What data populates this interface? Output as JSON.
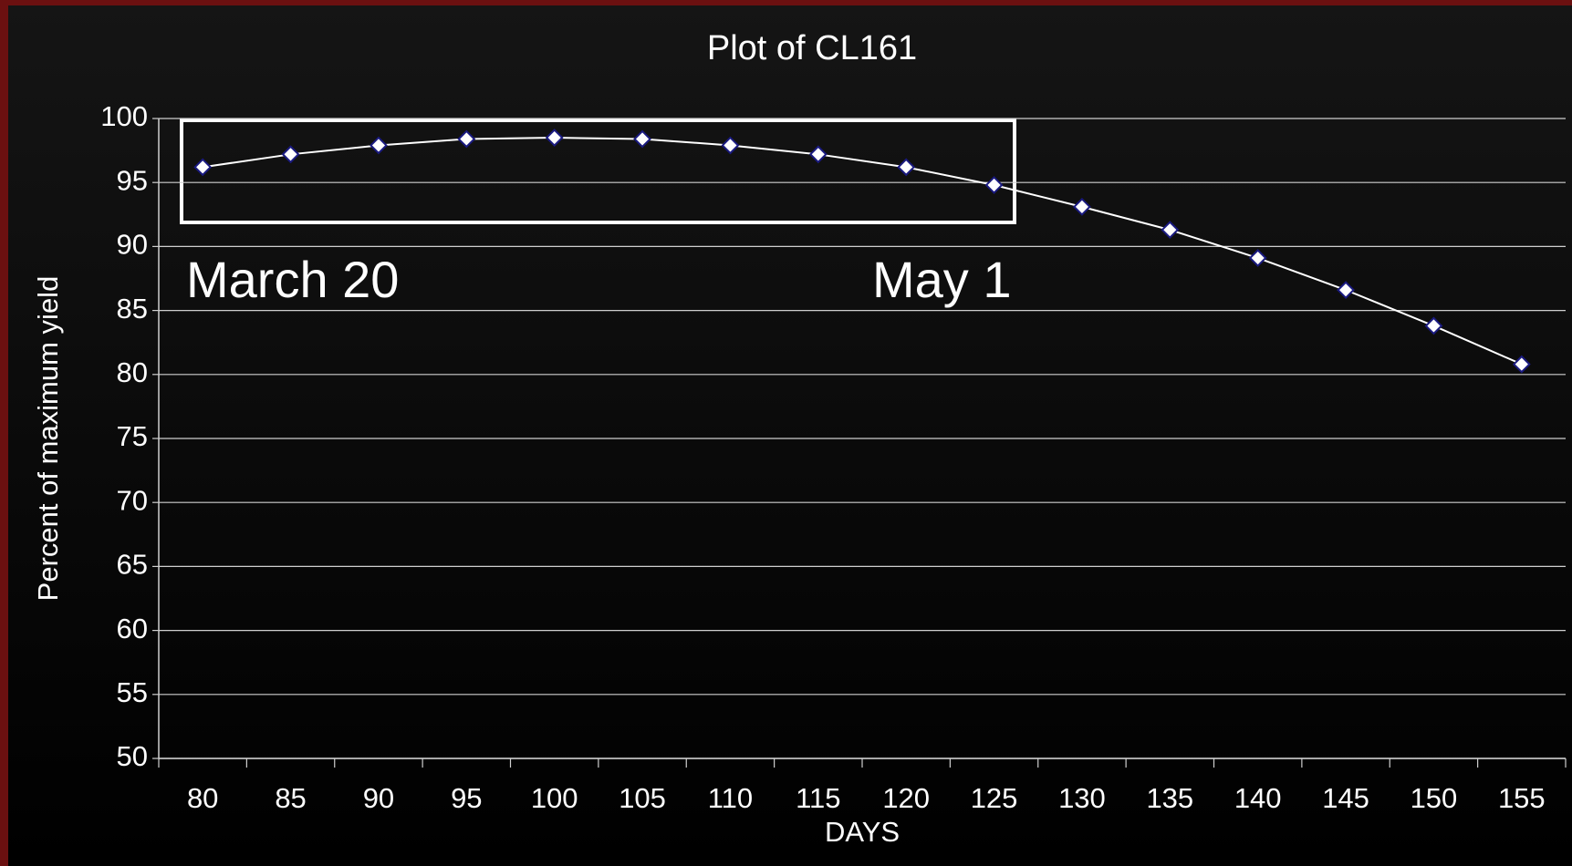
{
  "chart_data": {
    "type": "line",
    "title": "Plot of CL161",
    "x_label": "DAYS",
    "y_label": "Percent of maximum yield",
    "categories": [
      80,
      85,
      90,
      95,
      100,
      105,
      110,
      115,
      120,
      125,
      130,
      135,
      140,
      145,
      150,
      155
    ],
    "series": [
      {
        "name": "CL161",
        "color": "#ffffff",
        "values": [
          96.2,
          97.2,
          97.9,
          98.4,
          98.5,
          98.4,
          97.9,
          97.2,
          96.2,
          94.8,
          93.1,
          91.3,
          89.1,
          86.6,
          83.8,
          80.8
        ]
      }
    ],
    "ylim": [
      50,
      100
    ],
    "yticks": [
      50,
      55,
      60,
      65,
      70,
      75,
      80,
      85,
      90,
      95,
      100
    ],
    "grid": true,
    "annotations": [
      "March 20",
      "May 1"
    ]
  }
}
